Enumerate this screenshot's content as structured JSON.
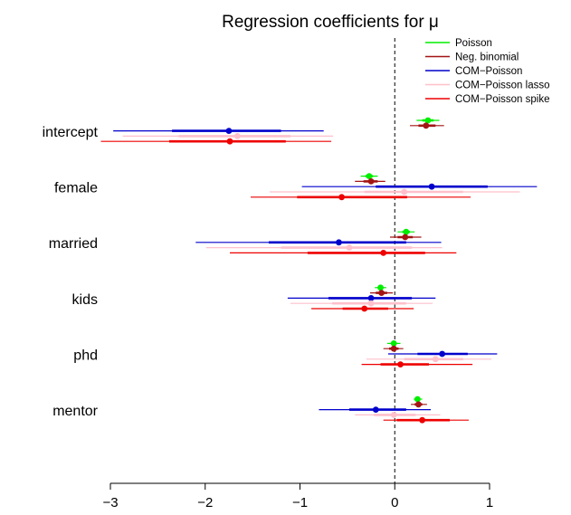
{
  "chart_data": {
    "type": "forest",
    "title": "Regression coefficients for μ",
    "xlim": [
      -3,
      1
    ],
    "x_ticks": [
      -3,
      -2,
      -1,
      0,
      1
    ],
    "x_tick_labels": [
      "−3",
      "−2",
      "−1",
      "0",
      "1"
    ],
    "reference_line": 0,
    "categories": [
      "intercept",
      "female",
      "married",
      "kids",
      "phd",
      "mentor"
    ],
    "legend_position": "top-right",
    "series": [
      {
        "name": "Poisson",
        "color": "#00ee00",
        "estimates": [
          0.35,
          -0.27,
          0.12,
          -0.15,
          -0.01,
          0.24
        ],
        "inner_intervals": [
          [
            0.29,
            0.41
          ],
          [
            -0.31,
            -0.23
          ],
          [
            0.08,
            0.16
          ],
          [
            -0.18,
            -0.12
          ],
          [
            -0.04,
            0.02
          ],
          [
            0.22,
            0.26
          ]
        ],
        "outer_intervals": [
          [
            0.23,
            0.47
          ],
          [
            -0.36,
            -0.18
          ],
          [
            0.03,
            0.21
          ],
          [
            -0.21,
            -0.09
          ],
          [
            -0.08,
            0.06
          ],
          [
            0.2,
            0.29
          ]
        ]
      },
      {
        "name": "Neg. binomial",
        "color": "#a31515",
        "estimates": [
          0.33,
          -0.25,
          0.11,
          -0.14,
          -0.01,
          0.25
        ],
        "inner_intervals": [
          [
            0.25,
            0.43
          ],
          [
            -0.33,
            -0.18
          ],
          [
            0.03,
            0.19
          ],
          [
            -0.2,
            -0.08
          ],
          [
            -0.06,
            0.04
          ],
          [
            0.21,
            0.29
          ]
        ],
        "outer_intervals": [
          [
            0.16,
            0.52
          ],
          [
            -0.42,
            -0.1
          ],
          [
            -0.05,
            0.28
          ],
          [
            -0.26,
            -0.02
          ],
          [
            -0.12,
            0.09
          ],
          [
            0.17,
            0.34
          ]
        ]
      },
      {
        "name": "COM−Poisson",
        "color": "#0000cc",
        "estimates": [
          -1.75,
          0.39,
          -0.59,
          -0.25,
          0.5,
          -0.2
        ],
        "inner_intervals": [
          [
            -2.35,
            -1.2
          ],
          [
            -0.2,
            0.98
          ],
          [
            -1.33,
            0.12
          ],
          [
            -0.7,
            0.18
          ],
          [
            0.24,
            0.77
          ],
          [
            -0.48,
            0.12
          ]
        ],
        "outer_intervals": [
          [
            -2.97,
            -0.75
          ],
          [
            -0.98,
            1.5
          ],
          [
            -2.1,
            0.49
          ],
          [
            -1.13,
            0.43
          ],
          [
            -0.07,
            1.08
          ],
          [
            -0.8,
            0.38
          ]
        ]
      },
      {
        "name": "COM−Poisson lasso",
        "color": "#ffc0cb",
        "estimates": [
          -1.66,
          0.1,
          -0.48,
          -0.25,
          0.43,
          -0.01
        ],
        "inner_intervals": [
          [
            -2.28,
            -1.1
          ],
          [
            -0.32,
            0.72
          ],
          [
            -1.2,
            0.18
          ],
          [
            -0.66,
            0.12
          ],
          [
            0.1,
            0.72
          ],
          [
            -0.22,
            0.22
          ]
        ],
        "outer_intervals": [
          [
            -2.87,
            -0.65
          ],
          [
            -1.32,
            1.32
          ],
          [
            -1.99,
            0.5
          ],
          [
            -1.1,
            0.4
          ],
          [
            -0.3,
            1.02
          ],
          [
            -0.42,
            0.48
          ]
        ]
      },
      {
        "name": "COM−Poisson spike",
        "color": "#ee0000",
        "estimates": [
          -1.74,
          -0.56,
          -0.12,
          -0.32,
          0.06,
          0.29
        ],
        "inner_intervals": [
          [
            -2.38,
            -1.15
          ],
          [
            -1.03,
            0.13
          ],
          [
            -0.92,
            0.32
          ],
          [
            -0.55,
            -0.07
          ],
          [
            -0.15,
            0.36
          ],
          [
            0.02,
            0.58
          ]
        ],
        "outer_intervals": [
          [
            -3.1,
            -0.67
          ],
          [
            -1.52,
            0.8
          ],
          [
            -1.74,
            0.65
          ],
          [
            -0.88,
            0.2
          ],
          [
            -0.35,
            0.82
          ],
          [
            -0.12,
            0.78
          ]
        ]
      }
    ]
  }
}
